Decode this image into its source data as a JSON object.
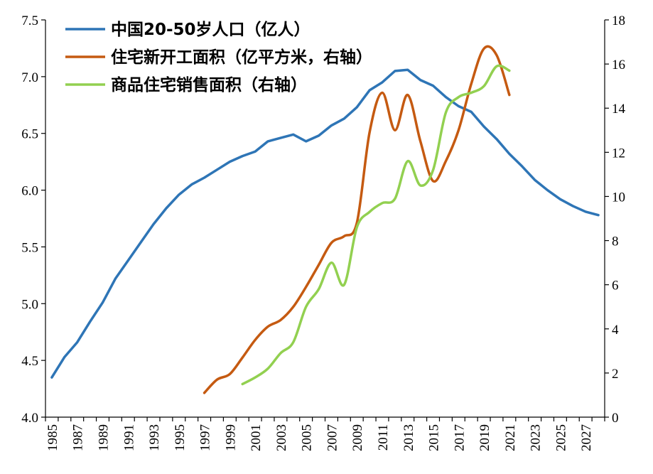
{
  "chart_data": {
    "type": "line",
    "title": "",
    "xlabel": "",
    "ylabel_left": "",
    "ylabel_right": "",
    "xlim": [
      1985,
      2028
    ],
    "ylim_left": [
      4.0,
      7.5
    ],
    "ylim_right": [
      0,
      18
    ],
    "yticks_left": [
      "4.0",
      "4.5",
      "5.0",
      "5.5",
      "6.0",
      "6.5",
      "7.0",
      "7.5"
    ],
    "yticks_right": [
      "0",
      "2",
      "4",
      "6",
      "8",
      "10",
      "12",
      "14",
      "16",
      "18"
    ],
    "xticks": [
      "1985",
      "1987",
      "1989",
      "1991",
      "1993",
      "1995",
      "1997",
      "1999",
      "2001",
      "2003",
      "2005",
      "2007",
      "2009",
      "2011",
      "2013",
      "2015",
      "2017",
      "2019",
      "2021",
      "2023",
      "2025",
      "2027"
    ],
    "grid": false,
    "legend_position": "top-left",
    "series": [
      {
        "name": "中国20-50岁人口（亿人）",
        "axis": "left",
        "color": "#2e75b6",
        "x": [
          1985,
          1986,
          1987,
          1988,
          1989,
          1990,
          1991,
          1992,
          1993,
          1994,
          1995,
          1996,
          1997,
          1998,
          1999,
          2000,
          2001,
          2002,
          2003,
          2004,
          2005,
          2006,
          2007,
          2008,
          2009,
          2010,
          2011,
          2012,
          2013,
          2014,
          2015,
          2016,
          2017,
          2018,
          2019,
          2020,
          2021,
          2022,
          2023,
          2024,
          2025,
          2026,
          2027,
          2028
        ],
        "values": [
          4.35,
          4.53,
          4.66,
          4.84,
          5.01,
          5.22,
          5.38,
          5.54,
          5.7,
          5.84,
          5.96,
          6.05,
          6.11,
          6.18,
          6.25,
          6.3,
          6.34,
          6.43,
          6.46,
          6.49,
          6.43,
          6.48,
          6.57,
          6.63,
          6.73,
          6.88,
          6.95,
          7.05,
          7.06,
          6.97,
          6.92,
          6.82,
          6.74,
          6.69,
          6.56,
          6.45,
          6.32,
          6.21,
          6.09,
          6.0,
          5.92,
          5.86,
          5.81,
          5.78
        ]
      },
      {
        "name": "住宅新开工面积（亿平方米，右轴）",
        "axis": "right",
        "color": "#c55a11",
        "x": [
          1997,
          1998,
          1999,
          2000,
          2001,
          2002,
          2003,
          2004,
          2005,
          2006,
          2007,
          2008,
          2009,
          2010,
          2011,
          2012,
          2013,
          2014,
          2015,
          2016,
          2017,
          2018,
          2019,
          2020,
          2021
        ],
        "values": [
          1.1,
          1.7,
          1.95,
          2.7,
          3.5,
          4.1,
          4.4,
          5.0,
          5.9,
          6.9,
          7.9,
          8.2,
          8.8,
          12.9,
          14.7,
          13.0,
          14.6,
          12.5,
          10.7,
          11.6,
          13.0,
          15.1,
          16.7,
          16.4,
          14.6
        ]
      },
      {
        "name": "商品住宅销售面积（右轴）",
        "axis": "right",
        "color": "#92d050",
        "x": [
          2000,
          2001,
          2002,
          2003,
          2004,
          2005,
          2006,
          2007,
          2008,
          2009,
          2010,
          2011,
          2012,
          2013,
          2014,
          2015,
          2016,
          2017,
          2018,
          2019,
          2020,
          2021
        ],
        "values": [
          1.5,
          1.8,
          2.2,
          2.9,
          3.4,
          5.0,
          5.8,
          7.0,
          6.0,
          8.6,
          9.3,
          9.7,
          9.9,
          11.6,
          10.5,
          11.2,
          13.8,
          14.5,
          14.7,
          15.0,
          15.9,
          15.7
        ]
      }
    ]
  }
}
